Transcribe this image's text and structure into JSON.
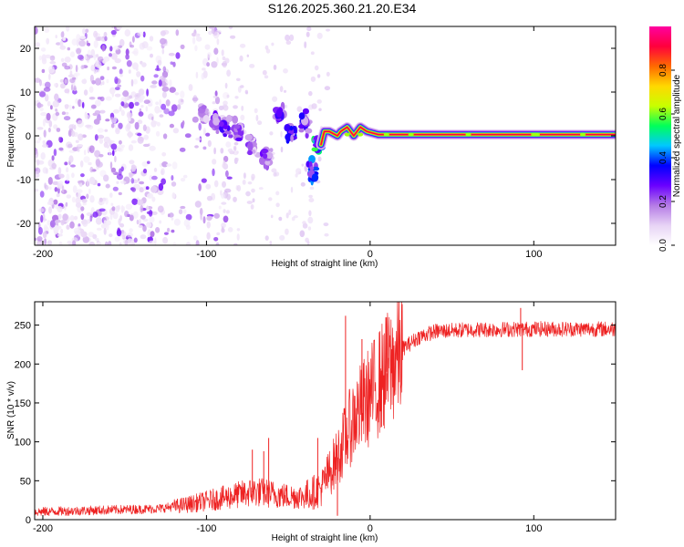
{
  "chart_data": [
    {
      "type": "heatmap",
      "title": "S126.2025.360.21.20.E34",
      "xlabel": "Height of straight line (km)",
      "ylabel": "Frequency (Hz)",
      "xlim": [
        -205,
        150
      ],
      "ylim": [
        -25,
        25
      ],
      "xticks": [
        -200,
        -100,
        0,
        100
      ],
      "yticks": [
        -20,
        -10,
        0,
        10,
        20
      ],
      "colorbar": {
        "label": "Normalized spectral amplitude",
        "ticks": [
          0,
          0.2,
          0.4,
          0.6,
          0.8
        ],
        "range": [
          0,
          1
        ],
        "colormap": [
          "#ffffff",
          "#e7d3f5",
          "#b57be6",
          "#6a00ff",
          "#0000ff",
          "#00c8ff",
          "#00ff5a",
          "#c8ff00",
          "#ffd800",
          "#ff6a00",
          "#ff003c",
          "#ff00a0"
        ]
      },
      "dominant_frequency_hz": 0,
      "clusters": [
        {
          "x": -102,
          "y": 5,
          "amp": 0.18
        },
        {
          "x": -95,
          "y": 3,
          "amp": 0.25
        },
        {
          "x": -88,
          "y": 2,
          "amp": 0.3
        },
        {
          "x": -80,
          "y": 1,
          "amp": 0.28
        },
        {
          "x": -72,
          "y": -2,
          "amp": 0.22
        },
        {
          "x": -63,
          "y": -5,
          "amp": 0.25
        },
        {
          "x": -55,
          "y": 5,
          "amp": 0.3
        },
        {
          "x": -48,
          "y": 1,
          "amp": 0.35
        },
        {
          "x": -40,
          "y": 3,
          "amp": 0.35
        },
        {
          "x": -35,
          "y": -8,
          "amp": 0.4
        },
        {
          "x": -32,
          "y": -2,
          "amp": 0.55
        }
      ],
      "ridge": [
        {
          "x": -30,
          "y": -2
        },
        {
          "x": -28,
          "y": 1
        },
        {
          "x": -25,
          "y": 1
        },
        {
          "x": -20,
          "y": 0
        },
        {
          "x": -18,
          "y": 1
        },
        {
          "x": -14,
          "y": 2
        },
        {
          "x": -10,
          "y": 0
        },
        {
          "x": -6,
          "y": 2
        },
        {
          "x": -2,
          "y": 1
        },
        {
          "x": 5,
          "y": 0.3
        },
        {
          "x": 150,
          "y": 0.3
        }
      ]
    },
    {
      "type": "line",
      "xlabel": "Height of straight line (km)",
      "ylabel": "SNR (10 * v/v)",
      "xlim": [
        -205,
        150
      ],
      "ylim": [
        0,
        280
      ],
      "xticks": [
        -200,
        -100,
        0,
        100
      ],
      "yticks": [
        0,
        50,
        100,
        150,
        200,
        250
      ],
      "series": [
        {
          "name": "SNR",
          "color": "#ee2222",
          "trend_x": [
            -205,
            -130,
            -110,
            -90,
            -70,
            -50,
            -40,
            -30,
            -20,
            -10,
            0,
            10,
            20,
            30,
            40,
            60,
            100,
            150
          ],
          "trend_y": [
            10,
            14,
            20,
            28,
            36,
            30,
            30,
            40,
            80,
            130,
            160,
            190,
            220,
            235,
            242,
            244,
            245,
            245
          ],
          "spikes": [
            {
              "x": -72,
              "y": 90
            },
            {
              "x": -65,
              "y": 88
            },
            {
              "x": -62,
              "y": 105
            },
            {
              "x": -32,
              "y": 105
            },
            {
              "x": -20,
              "y": 5
            },
            {
              "x": -15,
              "y": 262
            },
            {
              "x": -5,
              "y": 232
            },
            {
              "x": 10,
              "y": 260
            },
            {
              "x": 14,
              "y": 170
            },
            {
              "x": 92,
              "y": 272
            },
            {
              "x": 93,
              "y": 192
            }
          ]
        }
      ]
    }
  ]
}
